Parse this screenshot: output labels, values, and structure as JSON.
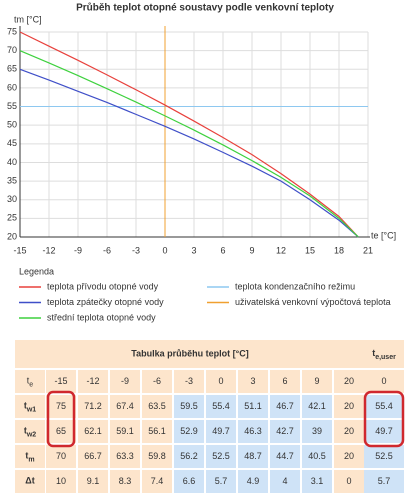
{
  "chart_data": {
    "type": "line",
    "title": "Průběh teplot otopné soustavy podle venkovní teploty",
    "y_label": "tm [°C]",
    "x_label": "te [°C]",
    "legend_title": "Legenda",
    "x": [
      -15,
      -12,
      -9,
      -6,
      -3,
      0,
      3,
      6,
      9,
      12,
      15,
      18,
      20
    ],
    "series": [
      {
        "name": "teplota přívodu otopné vody",
        "color": "#e8413c",
        "values": [
          75,
          71.2,
          67.4,
          63.5,
          59.5,
          55.4,
          51.1,
          46.7,
          42.1,
          37,
          31.5,
          25.5,
          20
        ]
      },
      {
        "name": "teplota zpátečky otopné vody",
        "color": "#3f4fc8",
        "values": [
          65,
          62.1,
          59.1,
          56.1,
          52.9,
          49.7,
          46.3,
          42.7,
          39,
          35,
          30,
          24.5,
          20
        ]
      },
      {
        "name": "střední teplota otopné vody",
        "color": "#3ed13e",
        "values": [
          70,
          66.7,
          63.3,
          59.8,
          56.2,
          52.5,
          48.7,
          44.7,
          40.5,
          36,
          31,
          25,
          20
        ]
      }
    ],
    "reference_lines": [
      {
        "name": "teplota kondenzačního režimu",
        "color": "#8ec8f0",
        "axis": "y",
        "value": 55
      },
      {
        "name": "uživatelská venkovní výpočtová teplota",
        "color": "#f0a030",
        "axis": "x",
        "value": 0
      }
    ],
    "xlim": [
      -15,
      21
    ],
    "xticks": [
      -15,
      -12,
      -9,
      -6,
      -3,
      0,
      3,
      6,
      9,
      12,
      15,
      18,
      21
    ],
    "ylim": [
      20,
      75
    ],
    "yticks": [
      20,
      25,
      30,
      35,
      40,
      45,
      50,
      55,
      60,
      65,
      70,
      75
    ],
    "grid": true
  },
  "table": {
    "title": "Tabulka průběhu teplot [°C]",
    "user_header": {
      "symbol": "t",
      "sub": "e,user"
    },
    "rows": [
      {
        "label": {
          "symbol": "t",
          "sub": "e"
        },
        "values": [
          -15,
          -12,
          -9,
          -6,
          -3,
          0,
          3,
          6,
          9,
          20
        ],
        "user": 0
      },
      {
        "label": {
          "symbol": "t",
          "sub": "w1"
        },
        "values": [
          75,
          71.2,
          67.4,
          63.5,
          59.5,
          55.4,
          51.1,
          46.7,
          42.1,
          20
        ],
        "user": 55.4
      },
      {
        "label": {
          "symbol": "t",
          "sub": "w2"
        },
        "values": [
          65,
          62.1,
          59.1,
          56.1,
          52.9,
          49.7,
          46.3,
          42.7,
          39,
          20
        ],
        "user": 49.7
      },
      {
        "label": {
          "symbol": "t",
          "sub": "m"
        },
        "values": [
          70,
          66.7,
          63.3,
          59.8,
          56.2,
          52.5,
          48.7,
          44.7,
          40.5,
          20
        ],
        "user": 52.5
      },
      {
        "label": {
          "symbol": "Δt"
        },
        "values": [
          10,
          9.1,
          8.3,
          7.4,
          6.6,
          5.7,
          4.9,
          4,
          3.1,
          0
        ],
        "user": 5.7
      }
    ]
  }
}
